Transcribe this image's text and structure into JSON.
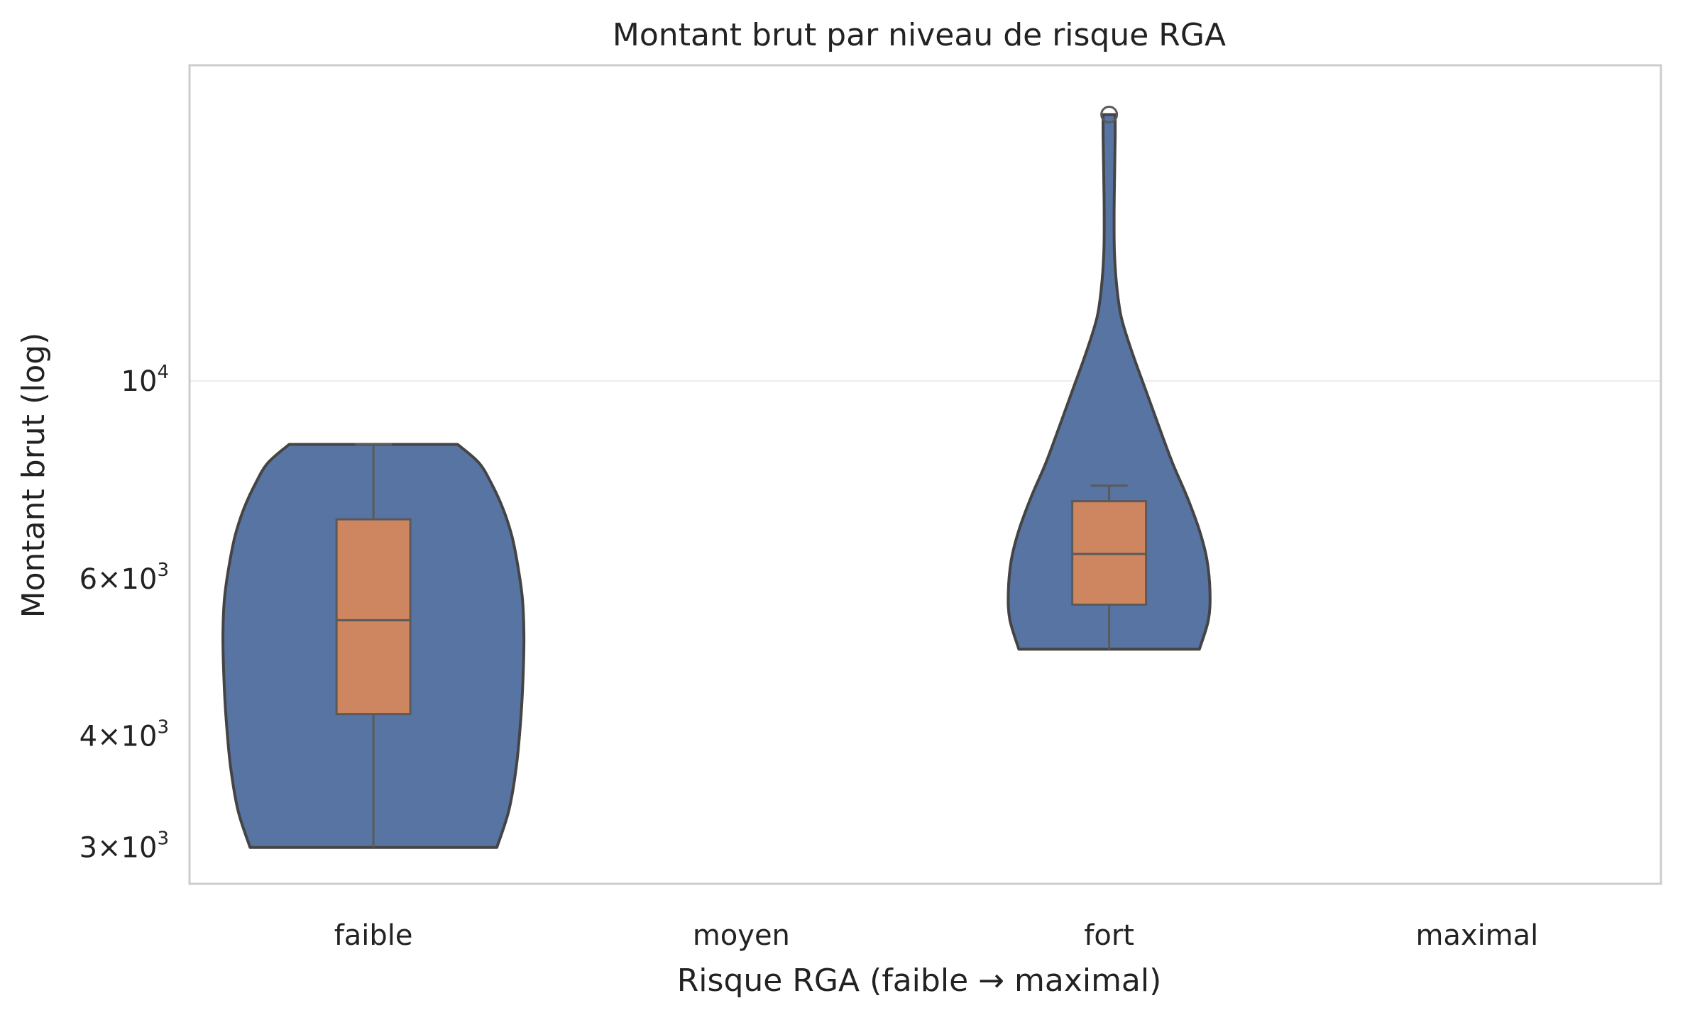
{
  "chart_data": {
    "type": "violin",
    "title": "Montant brut par niveau de risque RGA",
    "xlabel": "Risque RGA (faible → maximal)",
    "ylabel": "Montant brut (log)",
    "yscale": "log",
    "ylim": [
      2730,
      22600
    ],
    "grid": "y-major",
    "categories": [
      "faible",
      "moyen",
      "fort",
      "maximal"
    ],
    "yticks": [
      {
        "value": 3000,
        "base": "3",
        "exp": "3"
      },
      {
        "value": 4000,
        "base": "4",
        "exp": "3"
      },
      {
        "value": 6000,
        "base": "6",
        "exp": "3"
      },
      {
        "value": 10000,
        "base": "10",
        "exp": "4"
      }
    ],
    "groups": [
      {
        "category": "faible",
        "min": 2999,
        "q1": 4232,
        "median": 5392,
        "q3": 6997,
        "max": 8490,
        "density": [
          [
            2999,
            0.82
          ],
          [
            3300,
            0.9
          ],
          [
            3700,
            0.95
          ],
          [
            4200,
            0.98
          ],
          [
            4700,
            0.995
          ],
          [
            5200,
            1.0
          ],
          [
            5700,
            0.99
          ],
          [
            6200,
            0.96
          ],
          [
            6700,
            0.92
          ],
          [
            7200,
            0.86
          ],
          [
            7700,
            0.78
          ],
          [
            8100,
            0.7
          ],
          [
            8490,
            0.56
          ]
        ],
        "outliers": []
      },
      {
        "category": "moyen",
        "outliers": []
      },
      {
        "category": "fort",
        "min": 5004,
        "q1": 5613,
        "median": 6398,
        "q3": 7332,
        "max": 7633,
        "density": [
          [
            5004,
            0.6
          ],
          [
            5400,
            0.66
          ],
          [
            5800,
            0.67
          ],
          [
            6300,
            0.65
          ],
          [
            6800,
            0.6
          ],
          [
            7400,
            0.52
          ],
          [
            8100,
            0.42
          ],
          [
            8900,
            0.33
          ],
          [
            9800,
            0.24
          ],
          [
            10800,
            0.15
          ],
          [
            11800,
            0.08
          ],
          [
            12800,
            0.05
          ],
          [
            14000,
            0.035
          ],
          [
            15500,
            0.033
          ],
          [
            17000,
            0.036
          ],
          [
            18800,
            0.04
          ],
          [
            19900,
            0.04
          ]
        ],
        "outliers": [
          19900
        ]
      },
      {
        "category": "maximal",
        "outliers": []
      }
    ]
  },
  "colors": {
    "violin_fill": "#5874a3",
    "box_fill": "#cd8660",
    "edge": "#444444",
    "box_edge": "#5a5a5a",
    "frame": "#cccccc",
    "grid": "#ececec"
  }
}
